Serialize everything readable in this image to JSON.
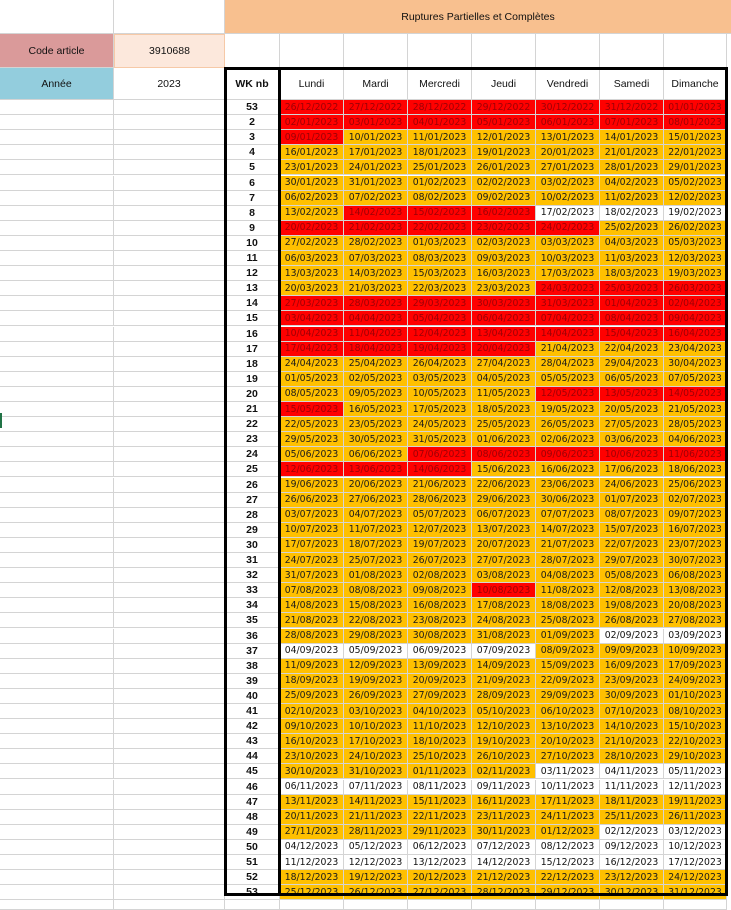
{
  "sheet": {
    "title": "Ruptures Partielles et Complètes",
    "code_article_label": "Code article",
    "code_article_value": "3910688",
    "annee_label": "Année",
    "annee_value": "2023",
    "columns": {
      "wk": "WK nb",
      "days": [
        "Lundi",
        "Mardi",
        "Mercredi",
        "Jeudi",
        "Vendredi",
        "Samedi",
        "Dimanche"
      ]
    },
    "colors": {
      "red": "#ff0000",
      "orange": "#ffc000",
      "white": "#ffffff",
      "title_band": "#f8c08f",
      "code_label": "#da9a9a",
      "annee_label": "#93cddd"
    },
    "legend_codes": {
      "R": "red",
      "O": "orange",
      "W": "white"
    },
    "weeks": [
      {
        "wk": "53",
        "dates": [
          "26/12/2022",
          "27/12/2022",
          "28/12/2022",
          "29/12/2022",
          "30/12/2022",
          "31/12/2022",
          "01/01/2023"
        ],
        "status": "RRRRRRR"
      },
      {
        "wk": "2",
        "dates": [
          "02/01/2023",
          "03/01/2023",
          "04/01/2023",
          "05/01/2023",
          "06/01/2023",
          "07/01/2023",
          "08/01/2023"
        ],
        "status": "RRRRRRR"
      },
      {
        "wk": "3",
        "dates": [
          "09/01/2023",
          "10/01/2023",
          "11/01/2023",
          "12/01/2023",
          "13/01/2023",
          "14/01/2023",
          "15/01/2023"
        ],
        "status": "ROOOOOO"
      },
      {
        "wk": "4",
        "dates": [
          "16/01/2023",
          "17/01/2023",
          "18/01/2023",
          "19/01/2023",
          "20/01/2023",
          "21/01/2023",
          "22/01/2023"
        ],
        "status": "OOOOOOO"
      },
      {
        "wk": "5",
        "dates": [
          "23/01/2023",
          "24/01/2023",
          "25/01/2023",
          "26/01/2023",
          "27/01/2023",
          "28/01/2023",
          "29/01/2023"
        ],
        "status": "OOOOOOO"
      },
      {
        "wk": "6",
        "dates": [
          "30/01/2023",
          "31/01/2023",
          "01/02/2023",
          "02/02/2023",
          "03/02/2023",
          "04/02/2023",
          "05/02/2023"
        ],
        "status": "OOOOOOO"
      },
      {
        "wk": "7",
        "dates": [
          "06/02/2023",
          "07/02/2023",
          "08/02/2023",
          "09/02/2023",
          "10/02/2023",
          "11/02/2023",
          "12/02/2023"
        ],
        "status": "OOOOOOO"
      },
      {
        "wk": "8",
        "dates": [
          "13/02/2023",
          "14/02/2023",
          "15/02/2023",
          "16/02/2023",
          "17/02/2023",
          "18/02/2023",
          "19/02/2023"
        ],
        "status": "ORRRWWW"
      },
      {
        "wk": "9",
        "dates": [
          "20/02/2023",
          "21/02/2023",
          "22/02/2023",
          "23/02/2023",
          "24/02/2023",
          "25/02/2023",
          "26/02/2023"
        ],
        "status": "RRRRROO"
      },
      {
        "wk": "10",
        "dates": [
          "27/02/2023",
          "28/02/2023",
          "01/03/2023",
          "02/03/2023",
          "03/03/2023",
          "04/03/2023",
          "05/03/2023"
        ],
        "status": "OOOOOOO"
      },
      {
        "wk": "11",
        "dates": [
          "06/03/2023",
          "07/03/2023",
          "08/03/2023",
          "09/03/2023",
          "10/03/2023",
          "11/03/2023",
          "12/03/2023"
        ],
        "status": "OOOOOOO"
      },
      {
        "wk": "12",
        "dates": [
          "13/03/2023",
          "14/03/2023",
          "15/03/2023",
          "16/03/2023",
          "17/03/2023",
          "18/03/2023",
          "19/03/2023"
        ],
        "status": "OOOOOOO"
      },
      {
        "wk": "13",
        "dates": [
          "20/03/2023",
          "21/03/2023",
          "22/03/2023",
          "23/03/2023",
          "24/03/2023",
          "25/03/2023",
          "26/03/2023"
        ],
        "status": "OOOORRR"
      },
      {
        "wk": "14",
        "dates": [
          "27/03/2023",
          "28/03/2023",
          "29/03/2023",
          "30/03/2023",
          "31/03/2023",
          "01/04/2023",
          "02/04/2023"
        ],
        "status": "RRRRRRR"
      },
      {
        "wk": "15",
        "dates": [
          "03/04/2023",
          "04/04/2023",
          "05/04/2023",
          "06/04/2023",
          "07/04/2023",
          "08/04/2023",
          "09/04/2023"
        ],
        "status": "RRRRRRR"
      },
      {
        "wk": "16",
        "dates": [
          "10/04/2023",
          "11/04/2023",
          "12/04/2023",
          "13/04/2023",
          "14/04/2023",
          "15/04/2023",
          "16/04/2023"
        ],
        "status": "RRRRRRR"
      },
      {
        "wk": "17",
        "dates": [
          "17/04/2023",
          "18/04/2023",
          "19/04/2023",
          "20/04/2023",
          "21/04/2023",
          "22/04/2023",
          "23/04/2023"
        ],
        "status": "RRRROOO"
      },
      {
        "wk": "18",
        "dates": [
          "24/04/2023",
          "25/04/2023",
          "26/04/2023",
          "27/04/2023",
          "28/04/2023",
          "29/04/2023",
          "30/04/2023"
        ],
        "status": "OOOOOOO"
      },
      {
        "wk": "19",
        "dates": [
          "01/05/2023",
          "02/05/2023",
          "03/05/2023",
          "04/05/2023",
          "05/05/2023",
          "06/05/2023",
          "07/05/2023"
        ],
        "status": "OOOOOOO"
      },
      {
        "wk": "20",
        "dates": [
          "08/05/2023",
          "09/05/2023",
          "10/05/2023",
          "11/05/2023",
          "12/05/2023",
          "13/05/2023",
          "14/05/2023"
        ],
        "status": "OOOORRR"
      },
      {
        "wk": "21",
        "dates": [
          "15/05/2023",
          "16/05/2023",
          "17/05/2023",
          "18/05/2023",
          "19/05/2023",
          "20/05/2023",
          "21/05/2023"
        ],
        "status": "ROOOOOO"
      },
      {
        "wk": "22",
        "dates": [
          "22/05/2023",
          "23/05/2023",
          "24/05/2023",
          "25/05/2023",
          "26/05/2023",
          "27/05/2023",
          "28/05/2023"
        ],
        "status": "OOOOOOO"
      },
      {
        "wk": "23",
        "dates": [
          "29/05/2023",
          "30/05/2023",
          "31/05/2023",
          "01/06/2023",
          "02/06/2023",
          "03/06/2023",
          "04/06/2023"
        ],
        "status": "OOOOOOO"
      },
      {
        "wk": "24",
        "dates": [
          "05/06/2023",
          "06/06/2023",
          "07/06/2023",
          "08/06/2023",
          "09/06/2023",
          "10/06/2023",
          "11/06/2023"
        ],
        "status": "OORRRRR"
      },
      {
        "wk": "25",
        "dates": [
          "12/06/2023",
          "13/06/2023",
          "14/06/2023",
          "15/06/2023",
          "16/06/2023",
          "17/06/2023",
          "18/06/2023"
        ],
        "status": "RRROOOO"
      },
      {
        "wk": "26",
        "dates": [
          "19/06/2023",
          "20/06/2023",
          "21/06/2023",
          "22/06/2023",
          "23/06/2023",
          "24/06/2023",
          "25/06/2023"
        ],
        "status": "OOOOOOO"
      },
      {
        "wk": "27",
        "dates": [
          "26/06/2023",
          "27/06/2023",
          "28/06/2023",
          "29/06/2023",
          "30/06/2023",
          "01/07/2023",
          "02/07/2023"
        ],
        "status": "OOOOOOO"
      },
      {
        "wk": "28",
        "dates": [
          "03/07/2023",
          "04/07/2023",
          "05/07/2023",
          "06/07/2023",
          "07/07/2023",
          "08/07/2023",
          "09/07/2023"
        ],
        "status": "OOOOOOO"
      },
      {
        "wk": "29",
        "dates": [
          "10/07/2023",
          "11/07/2023",
          "12/07/2023",
          "13/07/2023",
          "14/07/2023",
          "15/07/2023",
          "16/07/2023"
        ],
        "status": "OOOOOOO"
      },
      {
        "wk": "30",
        "dates": [
          "17/07/2023",
          "18/07/2023",
          "19/07/2023",
          "20/07/2023",
          "21/07/2023",
          "22/07/2023",
          "23/07/2023"
        ],
        "status": "OOOOOOO"
      },
      {
        "wk": "31",
        "dates": [
          "24/07/2023",
          "25/07/2023",
          "26/07/2023",
          "27/07/2023",
          "28/07/2023",
          "29/07/2023",
          "30/07/2023"
        ],
        "status": "OOOOOOO"
      },
      {
        "wk": "32",
        "dates": [
          "31/07/2023",
          "01/08/2023",
          "02/08/2023",
          "03/08/2023",
          "04/08/2023",
          "05/08/2023",
          "06/08/2023"
        ],
        "status": "OOOOOOO"
      },
      {
        "wk": "33",
        "dates": [
          "07/08/2023",
          "08/08/2023",
          "09/08/2023",
          "10/08/2023",
          "11/08/2023",
          "12/08/2023",
          "13/08/2023"
        ],
        "status": "OOOROOO"
      },
      {
        "wk": "34",
        "dates": [
          "14/08/2023",
          "15/08/2023",
          "16/08/2023",
          "17/08/2023",
          "18/08/2023",
          "19/08/2023",
          "20/08/2023"
        ],
        "status": "OOOOOOO"
      },
      {
        "wk": "35",
        "dates": [
          "21/08/2023",
          "22/08/2023",
          "23/08/2023",
          "24/08/2023",
          "25/08/2023",
          "26/08/2023",
          "27/08/2023"
        ],
        "status": "OOOOOOO"
      },
      {
        "wk": "36",
        "dates": [
          "28/08/2023",
          "29/08/2023",
          "30/08/2023",
          "31/08/2023",
          "01/09/2023",
          "02/09/2023",
          "03/09/2023"
        ],
        "status": "OOOOOWW"
      },
      {
        "wk": "37",
        "dates": [
          "04/09/2023",
          "05/09/2023",
          "06/09/2023",
          "07/09/2023",
          "08/09/2023",
          "09/09/2023",
          "10/09/2023"
        ],
        "status": "WWWWOOO"
      },
      {
        "wk": "38",
        "dates": [
          "11/09/2023",
          "12/09/2023",
          "13/09/2023",
          "14/09/2023",
          "15/09/2023",
          "16/09/2023",
          "17/09/2023"
        ],
        "status": "OOOOOOO"
      },
      {
        "wk": "39",
        "dates": [
          "18/09/2023",
          "19/09/2023",
          "20/09/2023",
          "21/09/2023",
          "22/09/2023",
          "23/09/2023",
          "24/09/2023"
        ],
        "status": "OOOOOOO"
      },
      {
        "wk": "40",
        "dates": [
          "25/09/2023",
          "26/09/2023",
          "27/09/2023",
          "28/09/2023",
          "29/09/2023",
          "30/09/2023",
          "01/10/2023"
        ],
        "status": "OOOOOOO"
      },
      {
        "wk": "41",
        "dates": [
          "02/10/2023",
          "03/10/2023",
          "04/10/2023",
          "05/10/2023",
          "06/10/2023",
          "07/10/2023",
          "08/10/2023"
        ],
        "status": "OOOOOOO"
      },
      {
        "wk": "42",
        "dates": [
          "09/10/2023",
          "10/10/2023",
          "11/10/2023",
          "12/10/2023",
          "13/10/2023",
          "14/10/2023",
          "15/10/2023"
        ],
        "status": "OOOOOOO"
      },
      {
        "wk": "43",
        "dates": [
          "16/10/2023",
          "17/10/2023",
          "18/10/2023",
          "19/10/2023",
          "20/10/2023",
          "21/10/2023",
          "22/10/2023"
        ],
        "status": "OOOOOOO"
      },
      {
        "wk": "44",
        "dates": [
          "23/10/2023",
          "24/10/2023",
          "25/10/2023",
          "26/10/2023",
          "27/10/2023",
          "28/10/2023",
          "29/10/2023"
        ],
        "status": "OOOOOOO"
      },
      {
        "wk": "45",
        "dates": [
          "30/10/2023",
          "31/10/2023",
          "01/11/2023",
          "02/11/2023",
          "03/11/2023",
          "04/11/2023",
          "05/11/2023"
        ],
        "status": "OOOOWWW"
      },
      {
        "wk": "46",
        "dates": [
          "06/11/2023",
          "07/11/2023",
          "08/11/2023",
          "09/11/2023",
          "10/11/2023",
          "11/11/2023",
          "12/11/2023"
        ],
        "status": "WWWWWWW"
      },
      {
        "wk": "47",
        "dates": [
          "13/11/2023",
          "14/11/2023",
          "15/11/2023",
          "16/11/2023",
          "17/11/2023",
          "18/11/2023",
          "19/11/2023"
        ],
        "status": "OOOOOOO"
      },
      {
        "wk": "48",
        "dates": [
          "20/11/2023",
          "21/11/2023",
          "22/11/2023",
          "23/11/2023",
          "24/11/2023",
          "25/11/2023",
          "26/11/2023"
        ],
        "status": "OOOOOOO"
      },
      {
        "wk": "49",
        "dates": [
          "27/11/2023",
          "28/11/2023",
          "29/11/2023",
          "30/11/2023",
          "01/12/2023",
          "02/12/2023",
          "03/12/2023"
        ],
        "status": "OOOOOWW"
      },
      {
        "wk": "50",
        "dates": [
          "04/12/2023",
          "05/12/2023",
          "06/12/2023",
          "07/12/2023",
          "08/12/2023",
          "09/12/2023",
          "10/12/2023"
        ],
        "status": "WWWWWWW"
      },
      {
        "wk": "51",
        "dates": [
          "11/12/2023",
          "12/12/2023",
          "13/12/2023",
          "14/12/2023",
          "15/12/2023",
          "16/12/2023",
          "17/12/2023"
        ],
        "status": "WWWWWWW"
      },
      {
        "wk": "52",
        "dates": [
          "18/12/2023",
          "19/12/2023",
          "20/12/2023",
          "21/12/2023",
          "22/12/2023",
          "23/12/2023",
          "24/12/2023"
        ],
        "status": "OOOOOOO"
      },
      {
        "wk": "53",
        "dates": [
          "25/12/2023",
          "26/12/2023",
          "27/12/2023",
          "28/12/2023",
          "29/12/2023",
          "30/12/2023",
          "31/12/2023"
        ],
        "status": "OOOOOOO"
      }
    ]
  }
}
